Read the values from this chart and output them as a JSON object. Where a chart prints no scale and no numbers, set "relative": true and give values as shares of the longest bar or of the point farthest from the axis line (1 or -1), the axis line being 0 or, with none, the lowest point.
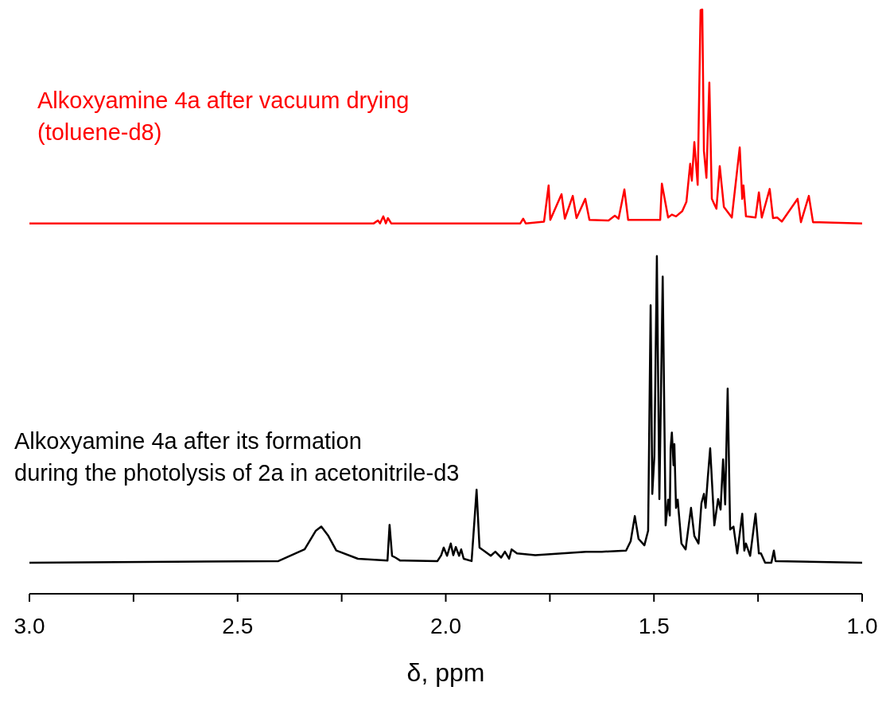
{
  "chart_data": {
    "type": "line",
    "relative": true,
    "xlabel": "δ, ppm",
    "xlim": [
      3.0,
      1.0
    ],
    "xticks": [
      {
        "value": 3,
        "label": "3.0"
      },
      {
        "value": 2.75,
        "label": null
      },
      {
        "value": 2.5,
        "label": "2.5"
      },
      {
        "value": 2.25,
        "label": null
      },
      {
        "value": 2,
        "label": "2.0"
      },
      {
        "value": 1.75,
        "label": null
      },
      {
        "value": 1.5,
        "label": "1.5"
      },
      {
        "value": 1.25,
        "label": null
      },
      {
        "value": 1,
        "label": "1.0"
      }
    ],
    "marker": "none",
    "line_style": "solid",
    "tick_labels": "x",
    "series": [
      {
        "name": "Alkoxyamine 4a after vacuum drying\n(toluene-d8)",
        "color": "#ff0000",
        "x": [
          3.0,
          2.173,
          2.163,
          2.158,
          2.15,
          2.144,
          2.139,
          2.131,
          1.821,
          1.814,
          1.808,
          1.764,
          1.753,
          1.749,
          1.722,
          1.714,
          1.695,
          1.686,
          1.665,
          1.655,
          1.609,
          1.594,
          1.585,
          1.571,
          1.562,
          1.485,
          1.481,
          1.466,
          1.457,
          1.447,
          1.432,
          1.422,
          1.413,
          1.409,
          1.403,
          1.395,
          1.388,
          1.384,
          1.38,
          1.374,
          1.367,
          1.361,
          1.35,
          1.342,
          1.332,
          1.313,
          1.294,
          1.288,
          1.285,
          1.279,
          1.256,
          1.248,
          1.241,
          1.222,
          1.214,
          1.204,
          1.193,
          1.155,
          1.147,
          1.128,
          1.118,
          1.103,
          1.0
        ],
        "values": [
          0.634,
          0.634,
          0.639,
          0.634,
          0.646,
          0.634,
          0.643,
          0.634,
          0.634,
          0.642,
          0.634,
          0.637,
          0.699,
          0.64,
          0.684,
          0.642,
          0.681,
          0.643,
          0.676,
          0.64,
          0.639,
          0.647,
          0.642,
          0.692,
          0.64,
          0.64,
          0.702,
          0.644,
          0.649,
          0.646,
          0.655,
          0.671,
          0.736,
          0.707,
          0.773,
          0.7,
          0.999,
          1.0,
          0.758,
          0.712,
          0.875,
          0.676,
          0.659,
          0.732,
          0.662,
          0.644,
          0.764,
          0.676,
          0.699,
          0.646,
          0.644,
          0.687,
          0.644,
          0.693,
          0.643,
          0.644,
          0.637,
          0.676,
          0.636,
          0.681,
          0.636,
          0.636,
          0.634
        ]
      },
      {
        "name": "Alkoxyamine 4a after its formation\nduring the photolysis of 2a in acetonitrile-d3",
        "color": "#000000",
        "x": [
          3.0,
          2.402,
          2.339,
          2.312,
          2.299,
          2.282,
          2.263,
          2.211,
          2.14,
          2.135,
          2.129,
          2.121,
          2.11,
          2.02,
          2.011,
          2.005,
          1.997,
          1.988,
          1.982,
          1.976,
          1.968,
          1.963,
          1.957,
          1.938,
          1.926,
          1.919,
          1.905,
          1.892,
          1.881,
          1.867,
          1.858,
          1.848,
          1.842,
          1.829,
          1.785,
          1.663,
          1.625,
          1.567,
          1.556,
          1.546,
          1.537,
          1.523,
          1.514,
          1.508,
          1.504,
          1.499,
          1.493,
          1.487,
          1.479,
          1.472,
          1.466,
          1.462,
          1.46,
          1.457,
          1.453,
          1.451,
          1.447,
          1.443,
          1.434,
          1.424,
          1.416,
          1.411,
          1.403,
          1.393,
          1.386,
          1.38,
          1.376,
          1.371,
          1.365,
          1.355,
          1.346,
          1.34,
          1.334,
          1.329,
          1.323,
          1.317,
          1.309,
          1.3,
          1.288,
          1.283,
          1.279,
          1.269,
          1.256,
          1.248,
          1.243,
          1.233,
          1.218,
          1.212,
          1.208,
          1.0
        ],
        "values": [
          0.053,
          0.056,
          0.076,
          0.108,
          0.115,
          0.099,
          0.074,
          0.06,
          0.057,
          0.118,
          0.065,
          0.062,
          0.057,
          0.056,
          0.066,
          0.079,
          0.065,
          0.086,
          0.066,
          0.08,
          0.065,
          0.076,
          0.06,
          0.056,
          0.178,
          0.079,
          0.072,
          0.065,
          0.072,
          0.062,
          0.072,
          0.06,
          0.076,
          0.069,
          0.066,
          0.072,
          0.072,
          0.074,
          0.09,
          0.133,
          0.094,
          0.083,
          0.108,
          0.494,
          0.171,
          0.236,
          0.578,
          0.162,
          0.543,
          0.117,
          0.161,
          0.134,
          0.249,
          0.276,
          0.22,
          0.256,
          0.147,
          0.161,
          0.086,
          0.076,
          0.12,
          0.147,
          0.099,
          0.086,
          0.155,
          0.171,
          0.147,
          0.196,
          0.249,
          0.117,
          0.162,
          0.144,
          0.23,
          0.153,
          0.351,
          0.11,
          0.115,
          0.069,
          0.137,
          0.074,
          0.086,
          0.065,
          0.137,
          0.069,
          0.069,
          0.053,
          0.053,
          0.074,
          0.056,
          0.053
        ]
      }
    ]
  }
}
